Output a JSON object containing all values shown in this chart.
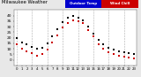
{
  "title": "Milwaukee Weather",
  "legend_temp_label": "Outdoor Temp",
  "legend_chill_label": "Wind Chill",
  "title_fontsize": 3.8,
  "background_color": "#e8e8e8",
  "plot_bg": "#ffffff",
  "legend_temp_color": "#0000cc",
  "legend_chill_color": "#cc0000",
  "ylim": [
    -5,
    45
  ],
  "yticks": [
    0,
    5,
    10,
    15,
    20,
    25,
    30,
    35,
    40
  ],
  "ytick_fontsize": 3.2,
  "xtick_fontsize": 2.8,
  "temp_marker_size": 2.0,
  "chill_marker_size": 2.0,
  "grid_color": "#999999",
  "temp_color": "#000000",
  "chill_color": "#cc0000",
  "hours": [
    0,
    1,
    2,
    3,
    4,
    5,
    6,
    7,
    8,
    9,
    10,
    11,
    12,
    13,
    14,
    15,
    16,
    17,
    18,
    19,
    20,
    21,
    22,
    23
  ],
  "temp_data": [
    20,
    16,
    14,
    12,
    10,
    11,
    15,
    21,
    28,
    34,
    38,
    40,
    38,
    36,
    30,
    24,
    18,
    14,
    11,
    9,
    8,
    7,
    6,
    5
  ],
  "chill_data": [
    14,
    10,
    8,
    6,
    4,
    5,
    9,
    16,
    22,
    29,
    33,
    36,
    35,
    33,
    27,
    21,
    14,
    10,
    7,
    5,
    4,
    3,
    2,
    1
  ],
  "xtick_labels": [
    "0",
    "1",
    "2",
    "3",
    "4",
    "5",
    "6",
    "7",
    "8",
    "9",
    "10",
    "11",
    "12",
    "13",
    "14",
    "15",
    "16",
    "17",
    "18",
    "19",
    "20",
    "21",
    "22",
    "23"
  ],
  "grid_hours": [
    0,
    3,
    6,
    9,
    12,
    15,
    18,
    21
  ]
}
